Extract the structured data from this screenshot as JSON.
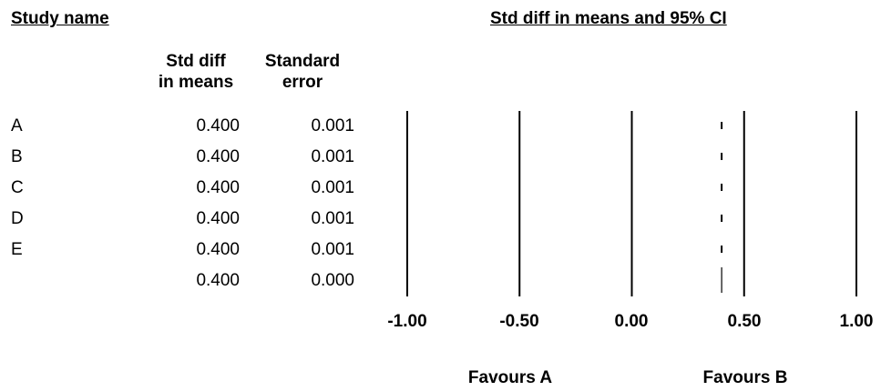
{
  "headers": {
    "study_name": "Study name",
    "plot_title": "Std diff in means and 95% CI",
    "col_effect": [
      "Std diff",
      "in means"
    ],
    "col_se": [
      "Standard",
      "error"
    ]
  },
  "rows": [
    {
      "study": "A",
      "effect": "0.400",
      "se": "0.001"
    },
    {
      "study": "B",
      "effect": "0.400",
      "se": "0.001"
    },
    {
      "study": "C",
      "effect": "0.400",
      "se": "0.001"
    },
    {
      "study": "D",
      "effect": "0.400",
      "se": "0.001"
    },
    {
      "study": "E",
      "effect": "0.400",
      "se": "0.001"
    },
    {
      "study": "",
      "effect": "0.400",
      "se": "0.000"
    }
  ],
  "axis": {
    "ticks": [
      "-1.00",
      "-0.50",
      "0.00",
      "0.50",
      "1.00"
    ]
  },
  "favours": {
    "left": "Favours A",
    "right": "Favours B"
  },
  "chart_data": {
    "type": "forest",
    "title": "Std diff in means and 95% CI",
    "xlim": [
      -1.0,
      1.0
    ],
    "xticks": [
      -1.0,
      -0.5,
      0.0,
      0.5,
      1.0
    ],
    "grid": true,
    "studies": [
      {
        "name": "A",
        "effect": 0.4,
        "se": 0.001
      },
      {
        "name": "B",
        "effect": 0.4,
        "se": 0.001
      },
      {
        "name": "C",
        "effect": 0.4,
        "se": 0.001
      },
      {
        "name": "D",
        "effect": 0.4,
        "se": 0.001
      },
      {
        "name": "E",
        "effect": 0.4,
        "se": 0.001
      }
    ],
    "summary": {
      "effect": 0.4,
      "se": 0.0
    }
  }
}
